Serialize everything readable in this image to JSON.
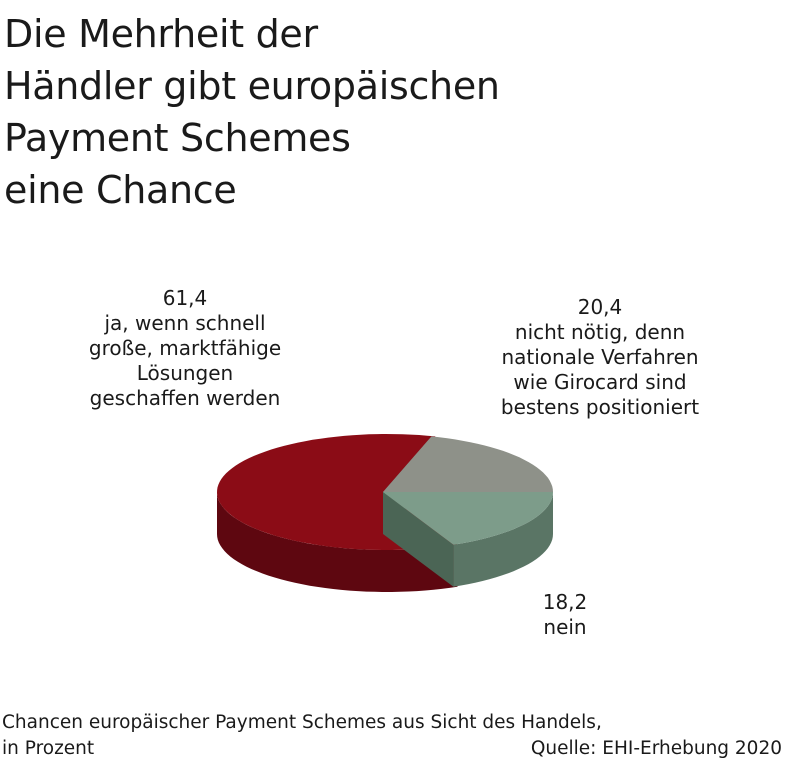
{
  "title_lines": [
    "Die Mehrheit der",
    "Händler gibt europäischen",
    "Payment Schemes",
    "eine Chance"
  ],
  "chart_data": {
    "type": "pie",
    "style": "3d-exploded",
    "slices": [
      {
        "value": 61.4,
        "value_label": "61,4",
        "label_lines": [
          "ja, wenn schnell",
          "große, marktfähige",
          "Lösungen",
          "geschaffen werden"
        ],
        "color": "#8b0c16",
        "side_color": "#5e0710"
      },
      {
        "value": 20.4,
        "value_label": "20,4",
        "label_lines": [
          "nicht nötig, denn",
          "nationale Verfahren",
          "wie Girocard sind",
          "bestens positioniert"
        ],
        "color": "#8e9189",
        "side_color": "#6b6e67"
      },
      {
        "value": 18.2,
        "value_label": "18,2",
        "label_lines": [
          "nein"
        ],
        "color": "#7d9c8a",
        "side_color": "#5a7565"
      }
    ]
  },
  "caption": {
    "line1": "Chancen europäischer Payment Schemes aus Sicht des Handels,",
    "line2_left": "in Prozent",
    "line2_right": "Quelle: EHI-Erhebung 2020"
  }
}
